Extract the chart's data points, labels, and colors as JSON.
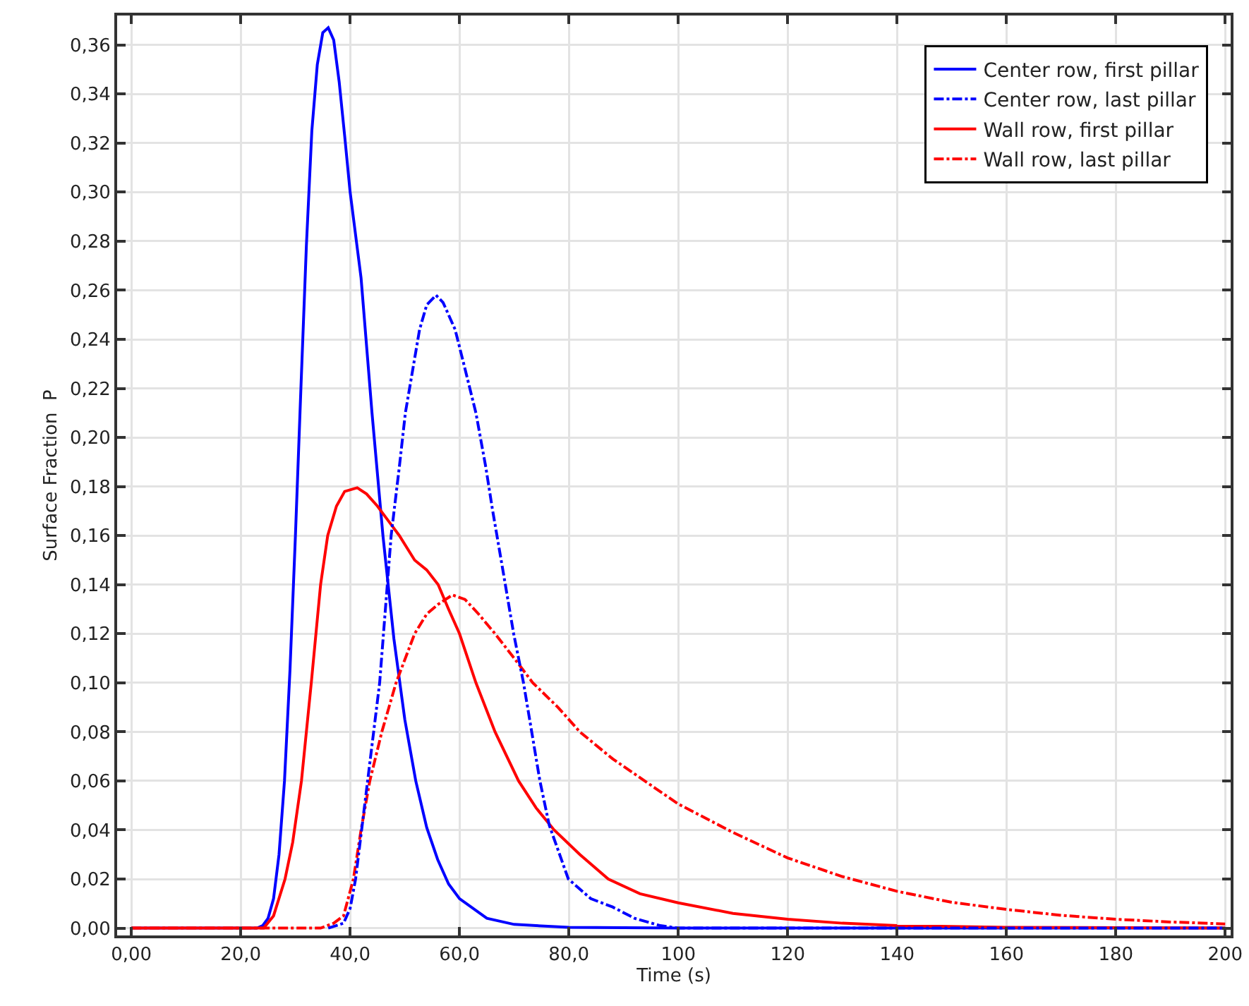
{
  "chart_data": {
    "type": "line",
    "xlabel": "Time (s)",
    "ylabel": "Surface Fraction  P",
    "xlim": [
      -2.6,
      201
    ],
    "ylim": [
      -0.003,
      0.372
    ],
    "xticks": [
      {
        "value": 0,
        "label": "0,00"
      },
      {
        "value": 20,
        "label": "20,0"
      },
      {
        "value": 40,
        "label": "40,0"
      },
      {
        "value": 60,
        "label": "60,0"
      },
      {
        "value": 80,
        "label": "80,0"
      },
      100,
      120,
      140,
      160,
      180,
      200
    ],
    "yticks": [
      {
        "value": 0,
        "label": "0,00"
      },
      {
        "value": 0.02,
        "label": "0,02"
      },
      {
        "value": 0.04,
        "label": "0,04"
      },
      {
        "value": 0.06,
        "label": "0,06"
      },
      {
        "value": 0.08,
        "label": "0,08"
      },
      {
        "value": 0.1,
        "label": "0,10"
      },
      {
        "value": 0.12,
        "label": "0,12"
      },
      {
        "value": 0.14,
        "label": "0,14"
      },
      {
        "value": 0.16,
        "label": "0,16"
      },
      {
        "value": 0.18,
        "label": "0,18"
      },
      {
        "value": 0.2,
        "label": "0,20"
      },
      {
        "value": 0.22,
        "label": "0,22"
      },
      {
        "value": 0.24,
        "label": "0,24"
      },
      {
        "value": 0.26,
        "label": "0,26"
      },
      {
        "value": 0.28,
        "label": "0,28"
      },
      {
        "value": 0.3,
        "label": "0,30"
      },
      {
        "value": 0.32,
        "label": "0,32"
      },
      {
        "value": 0.34,
        "label": "0,34"
      },
      {
        "value": 0.36,
        "label": "0,36"
      }
    ],
    "grid": true,
    "legend": "top right",
    "marker": "none",
    "series": [
      {
        "name": "Center row, first pillar",
        "color": "#0000ff",
        "line_style": "solid",
        "x": [
          0,
          20,
          23,
          24,
          25,
          26,
          27,
          28,
          29,
          30,
          31,
          32,
          33,
          34,
          35,
          36,
          37,
          38,
          39,
          40,
          42,
          44,
          46,
          48,
          50,
          52,
          54,
          56,
          58,
          60,
          65,
          70,
          80,
          100,
          200
        ],
        "values": [
          0,
          0,
          0,
          0.001,
          0.004,
          0.012,
          0.03,
          0.06,
          0.105,
          0.16,
          0.22,
          0.278,
          0.325,
          0.352,
          0.365,
          0.367,
          0.362,
          0.345,
          0.323,
          0.3,
          0.265,
          0.21,
          0.16,
          0.118,
          0.085,
          0.06,
          0.041,
          0.028,
          0.018,
          0.012,
          0.004,
          0.0015,
          0.0003,
          0,
          0
        ]
      },
      {
        "name": "Center row, last pillar",
        "color": "#0000ff",
        "line_style": "dashdot",
        "x": [
          36,
          38.8,
          40,
          41,
          43.2,
          45.4,
          47.5,
          49,
          50.1,
          52.7,
          54,
          55.7,
          57,
          59.2,
          61,
          63,
          64.8,
          66,
          68,
          69.9,
          71.7,
          74.7,
          76.4,
          79.9,
          84,
          88,
          92,
          96.7,
          100,
          200
        ],
        "values": [
          0,
          0.002,
          0.008,
          0.02,
          0.06,
          0.1,
          0.16,
          0.188,
          0.21,
          0.244,
          0.254,
          0.258,
          0.255,
          0.244,
          0.228,
          0.21,
          0.188,
          0.171,
          0.145,
          0.12,
          0.1,
          0.06,
          0.042,
          0.02,
          0.012,
          0.0086,
          0.004,
          0.001,
          0,
          0
        ]
      },
      {
        "name": "Wall row, first pillar",
        "color": "#ff0000",
        "line_style": "solid",
        "x": [
          0,
          20,
          24.2,
          26,
          28.1,
          29.5,
          31.1,
          32.9,
          34.6,
          35.9,
          37.5,
          39,
          41.3,
          43,
          45,
          47,
          49,
          51.8,
          54,
          56.1,
          58,
          60,
          63,
          66.5,
          70.8,
          74,
          77.3,
          82,
          87.2,
          93,
          100,
          110,
          120,
          130,
          140,
          160,
          200
        ],
        "values": [
          0,
          0,
          0,
          0.005,
          0.02,
          0.035,
          0.06,
          0.1,
          0.14,
          0.16,
          0.172,
          0.178,
          0.1795,
          0.177,
          0.172,
          0.166,
          0.16,
          0.15,
          0.146,
          0.14,
          0.13,
          0.12,
          0.1,
          0.08,
          0.06,
          0.049,
          0.04,
          0.03,
          0.02,
          0.014,
          0.0103,
          0.006,
          0.0036,
          0.002,
          0.001,
          0.0003,
          0
        ]
      },
      {
        "name": "Wall row, last pillar",
        "color": "#ff0000",
        "line_style": "dashdot",
        "x": [
          0,
          34.6,
          37,
          38.8,
          40.6,
          42,
          43.6,
          45.8,
          48.4,
          51.8,
          54,
          56.1,
          58.7,
          61,
          63.5,
          66.5,
          70,
          73.4,
          78,
          82,
          88,
          95.8,
          100,
          110,
          120,
          130,
          140,
          150,
          160.5,
          170,
          180,
          190,
          200
        ],
        "values": [
          0,
          0,
          0.002,
          0.005,
          0.02,
          0.04,
          0.06,
          0.08,
          0.1,
          0.12,
          0.128,
          0.132,
          0.1358,
          0.134,
          0.128,
          0.12,
          0.11,
          0.1,
          0.09,
          0.08,
          0.069,
          0.057,
          0.0506,
          0.039,
          0.0286,
          0.021,
          0.015,
          0.0105,
          0.0075,
          0.0052,
          0.0036,
          0.0025,
          0.0017
        ]
      }
    ]
  }
}
